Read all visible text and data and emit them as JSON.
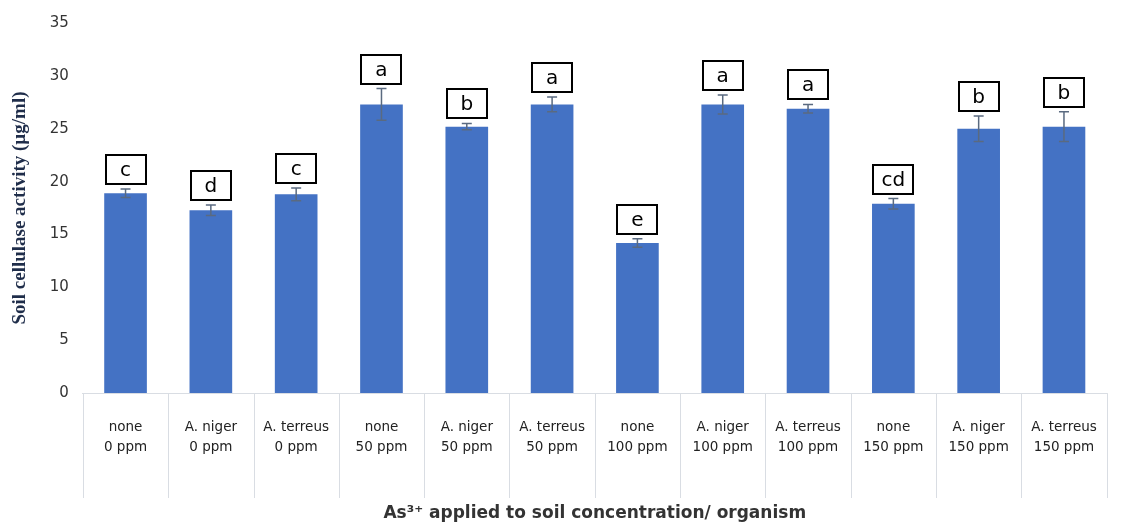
{
  "chart_data": {
    "type": "bar",
    "xlabel": "As³⁺ applied to soil concentration/ organism",
    "ylabel": "Soil cellulase activity (µg/ml)",
    "categories": [
      "none\n0 ppm",
      "A. niger\n0 ppm",
      "A. terreus\n0 ppm",
      "none\n50 ppm",
      "A. niger\n50 ppm",
      "A. terreus\n50 ppm",
      "none\n100 ppm",
      "A. niger\n100 ppm",
      "A. terreus\n100 ppm",
      "none\n150 ppm",
      "A. niger\n150 ppm",
      "A. terreus\n150 ppm"
    ],
    "values": [
      18.9,
      17.3,
      18.8,
      27.3,
      25.2,
      27.3,
      14.2,
      27.3,
      26.9,
      17.9,
      25.0,
      25.2
    ],
    "errors": [
      0.4,
      0.5,
      0.6,
      1.5,
      0.3,
      0.7,
      0.4,
      0.9,
      0.4,
      0.5,
      1.2,
      1.4
    ],
    "color": "#4472c4",
    "ylim": [
      0,
      35
    ],
    "yticks": [
      0,
      5,
      10,
      15,
      20,
      25,
      30,
      35
    ],
    "grid": false,
    "annotations": [
      {
        "text": "c",
        "x": "none\n0 ppm",
        "y": 19.3
      },
      {
        "text": "d",
        "x": "A. niger\n0 ppm",
        "y": 17.8
      },
      {
        "text": "c",
        "x": "A. terreus\n0 ppm",
        "y": 19.4
      },
      {
        "text": "a",
        "x": "none\n50 ppm",
        "y": 28.8
      },
      {
        "text": "b",
        "x": "A. niger\n50 ppm",
        "y": 25.5
      },
      {
        "text": "a",
        "x": "A. terreus\n50 ppm",
        "y": 28.0
      },
      {
        "text": "e",
        "x": "none\n100 ppm",
        "y": 14.6
      },
      {
        "text": "a",
        "x": "A. niger\n100 ppm",
        "y": 28.2
      },
      {
        "text": "a",
        "x": "A. terreus\n100 ppm",
        "y": 27.3
      },
      {
        "text": "cd",
        "x": "none\n150 ppm",
        "y": 18.4
      },
      {
        "text": "b",
        "x": "A. niger\n150 ppm",
        "y": 26.2
      },
      {
        "text": "b",
        "x": "A. terreus\n150 ppm",
        "y": 26.6
      }
    ]
  }
}
